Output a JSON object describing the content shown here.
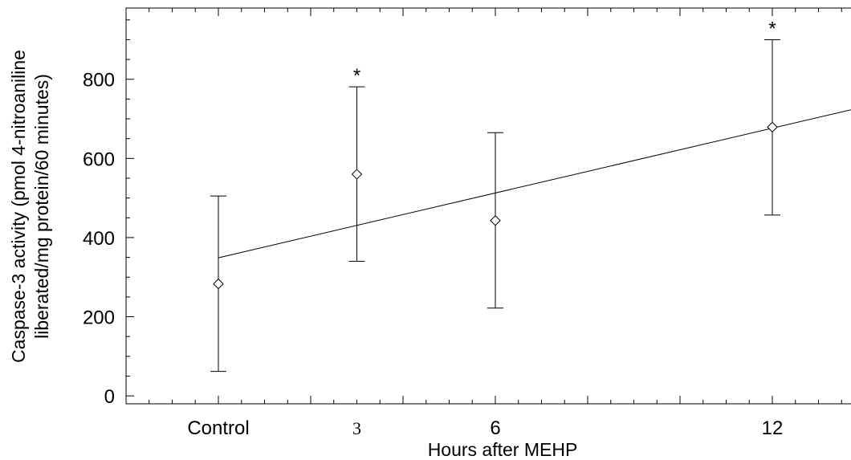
{
  "chart_data": {
    "type": "scatter",
    "title": "",
    "xlabel": "Hours after MEHP",
    "ylabel_line1": "Caspase-3 activity (pmol 4-nitroaniline",
    "ylabel_line2": "liberated/mg protein/60 minutes)",
    "xlim": [
      -2,
      14
    ],
    "ylim": [
      -20,
      980
    ],
    "y_ticks": [
      0,
      200,
      400,
      600,
      800
    ],
    "x_tick_labels": [
      {
        "x": 0,
        "label": "Control"
      },
      {
        "x": 3,
        "label": "3"
      },
      {
        "x": 6,
        "label": "6"
      },
      {
        "x": 12,
        "label": "12"
      }
    ],
    "points": [
      {
        "x": 0,
        "y": 283,
        "err_low": 62,
        "err_high": 505,
        "significant": false
      },
      {
        "x": 3,
        "y": 560,
        "err_low": 340,
        "err_high": 781,
        "significant": true
      },
      {
        "x": 6,
        "y": 443,
        "err_low": 222,
        "err_high": 665,
        "significant": false
      },
      {
        "x": 12,
        "y": 679,
        "err_low": 457,
        "err_high": 900,
        "significant": true
      }
    ],
    "significance_marker": "*",
    "trend_line": {
      "x": [
        0,
        14
      ],
      "y": [
        349,
        731
      ]
    },
    "marker": "open-diamond",
    "grid": false,
    "legend": "none"
  }
}
